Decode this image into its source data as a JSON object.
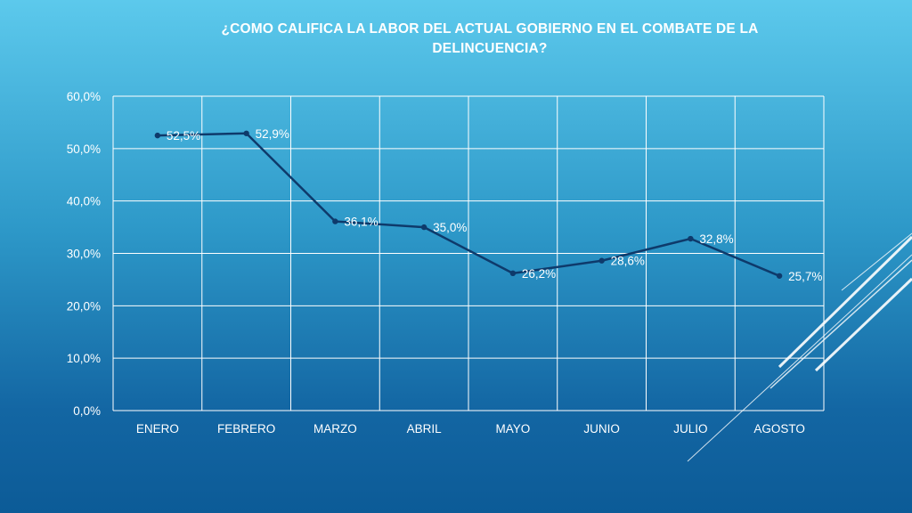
{
  "slide": {
    "title": "¿COMO CALIFICA LA LABOR DEL ACTUAL GOBIERNO EN EL COMBATE DE LA\nDELINCUENCIA?"
  },
  "colors": {
    "line": "#0e3a6b",
    "grid": "#ffffff",
    "text": "#ffffff",
    "label": "#ffffff"
  },
  "chart_data": {
    "type": "line",
    "title": "¿COMO CALIFICA LA LABOR DEL ACTUAL GOBIERNO EN EL COMBATE DE LA DELINCUENCIA?",
    "categories": [
      "ENERO",
      "FEBRERO",
      "MARZO",
      "ABRIL",
      "MAYO",
      "JUNIO",
      "JULIO",
      "AGOSTO"
    ],
    "series": [
      {
        "values": [
          52.5,
          52.9,
          36.1,
          35.0,
          26.2,
          28.6,
          32.8,
          25.7
        ]
      }
    ],
    "data_labels": [
      "52,5%",
      "52,9%",
      "36,1%",
      "35,0%",
      "26,2%",
      "28,6%",
      "32,8%",
      "25,7%"
    ],
    "y_ticks": [
      0,
      10,
      20,
      30,
      40,
      50,
      60
    ],
    "y_tick_labels": [
      "0,0%",
      "10,0%",
      "20,0%",
      "30,0%",
      "40,0%",
      "50,0%",
      "60,0%"
    ],
    "ylim": [
      0,
      60
    ],
    "grid": true,
    "legend": "none"
  }
}
